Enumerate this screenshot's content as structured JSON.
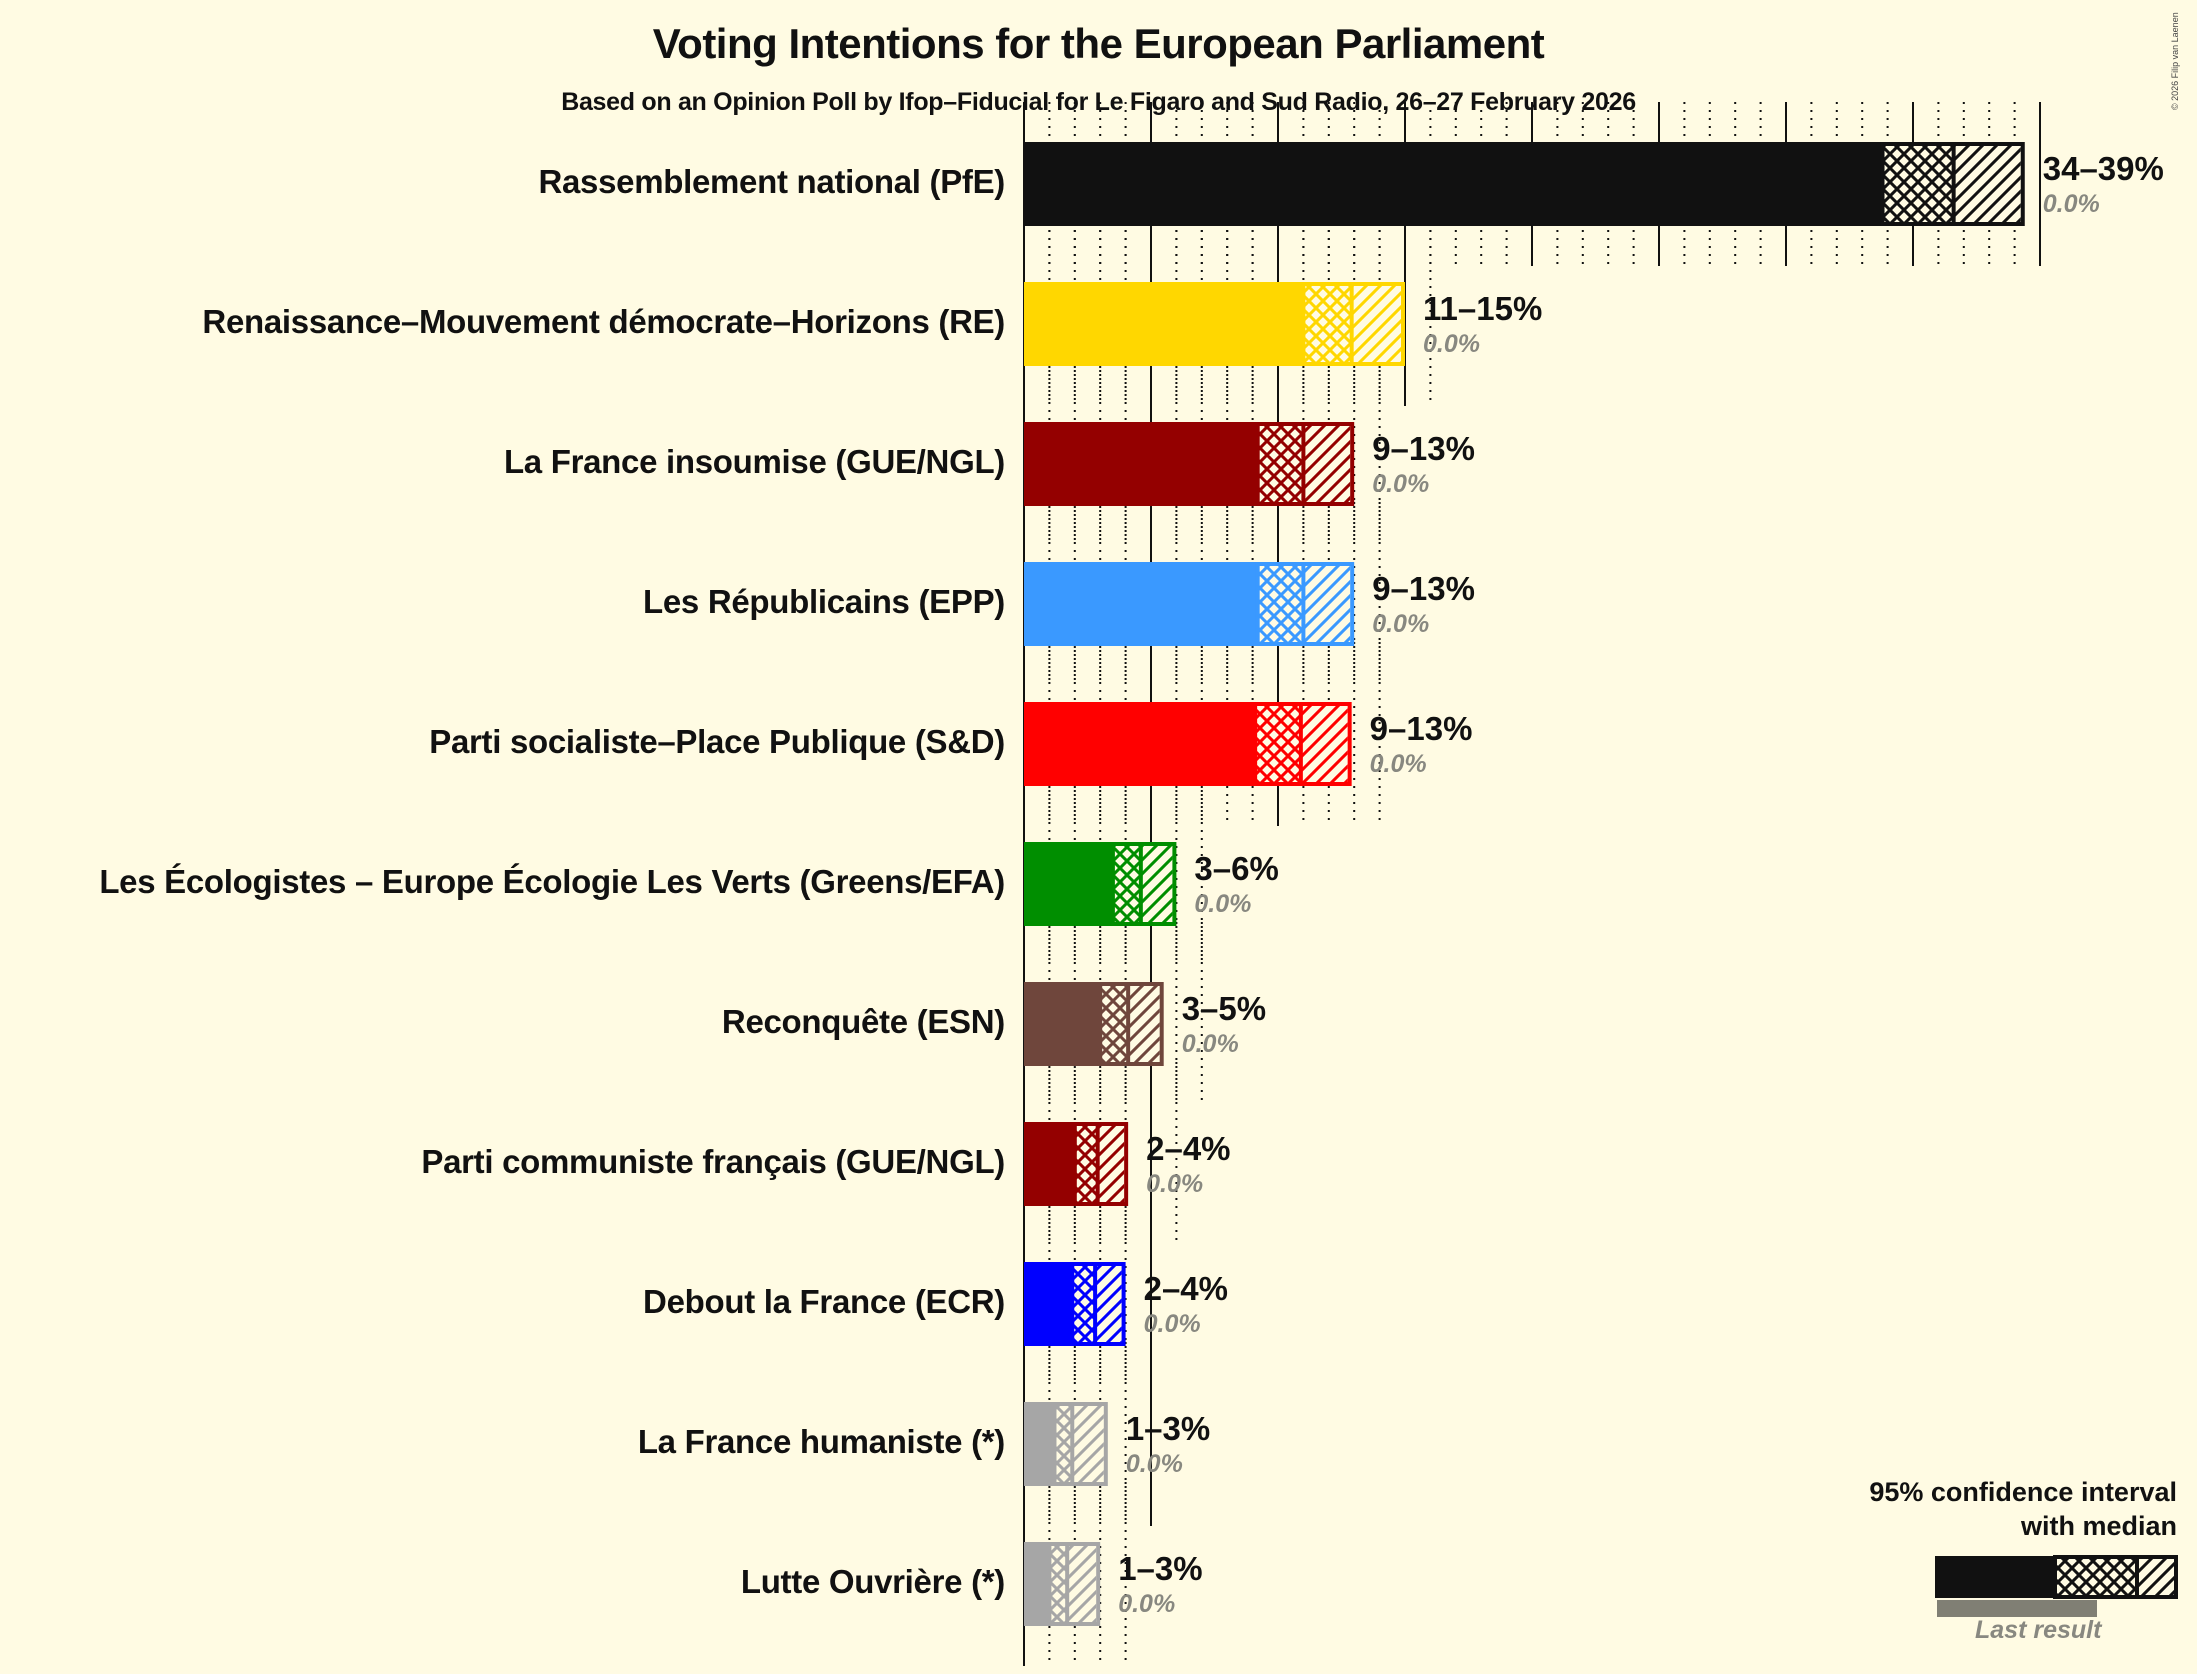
{
  "header": {
    "title": "Voting Intentions for the European Parliament",
    "subtitle": "Based on an Opinion Poll by Ifop–Fiducial for Le Figaro and Sud Radio, 26–27 February 2026",
    "copyright": "© 2026 Filip van Laenen"
  },
  "legend": {
    "title_line1": "95% confidence interval",
    "title_line2": "with median",
    "last_result": "Last result"
  },
  "chart_data": {
    "type": "bar",
    "orientation": "horizontal",
    "title": "Voting Intentions for the European Parliament",
    "subtitle": "Based on an Opinion Poll by Ifop–Fiducial for Le Figaro and Sud Radio, 26–27 February 2026",
    "xlabel": "",
    "ylabel": "",
    "xlim": [
      0,
      40
    ],
    "grid": {
      "major_every_pct": 5,
      "minor_every_pct": 1
    },
    "legend": {
      "position": "bottom-right",
      "entries": [
        "95% confidence interval with median",
        "Last result"
      ]
    },
    "categories": [
      "Rassemblement national (PfE)",
      "Renaissance–Mouvement démocrate–Horizons (RE)",
      "La France insoumise (GUE/NGL)",
      "Les Républicains (EPP)",
      "Parti socialiste–Place Publique (S&D)",
      "Les Écologistes – Europe Écologie Les Verts (Greens/EFA)",
      "Reconquête (ESN)",
      "Parti communiste français (GUE/NGL)",
      "Debout la France (ECR)",
      "La France humaniste (*)",
      "Lutte Ouvrière (*)"
    ],
    "series": [
      {
        "name": "CI low (%)",
        "values": [
          33.8,
          11.0,
          9.2,
          9.2,
          9.1,
          3.5,
          3.0,
          2.0,
          1.9,
          1.2,
          1.0
        ]
      },
      {
        "name": "Median (%)",
        "values": [
          36.6,
          12.9,
          11.0,
          11.0,
          10.9,
          4.6,
          4.1,
          2.9,
          2.8,
          1.9,
          1.7
        ]
      },
      {
        "name": "CI high (%)",
        "values": [
          39.4,
          15.0,
          13.0,
          13.0,
          12.9,
          6.0,
          5.5,
          4.1,
          4.0,
          3.3,
          3.0
        ]
      },
      {
        "name": "Last result (%)",
        "values": [
          0.0,
          0.0,
          0.0,
          0.0,
          0.0,
          0.0,
          0.0,
          0.0,
          0.0,
          0.0,
          0.0
        ]
      }
    ],
    "parties": [
      {
        "label": "Rassemblement national (PfE)",
        "range": "34–39%",
        "last": "0.0%",
        "color": "#111111",
        "low": 33.8,
        "median": 36.6,
        "high": 39.4
      },
      {
        "label": "Renaissance–Mouvement démocrate–Horizons (RE)",
        "range": "11–15%",
        "last": "0.0%",
        "color": "#FFD700",
        "low": 11.0,
        "median": 12.9,
        "high": 15.0
      },
      {
        "label": "La France insoumise (GUE/NGL)",
        "range": "9–13%",
        "last": "0.0%",
        "color": "#940000",
        "low": 9.2,
        "median": 11.0,
        "high": 13.0
      },
      {
        "label": "Les Républicains (EPP)",
        "range": "9–13%",
        "last": "0.0%",
        "color": "#3A99FF",
        "low": 9.2,
        "median": 11.0,
        "high": 13.0
      },
      {
        "label": "Parti socialiste–Place Publique (S&D)",
        "range": "9–13%",
        "last": "0.0%",
        "color": "#FF0000",
        "low": 9.1,
        "median": 10.9,
        "high": 12.9
      },
      {
        "label": "Les Écologistes – Europe Écologie Les Verts (Greens/EFA)",
        "range": "3–6%",
        "last": "0.0%",
        "color": "#008E00",
        "low": 3.5,
        "median": 4.6,
        "high": 6.0
      },
      {
        "label": "Reconquête (ESN)",
        "range": "3–5%",
        "last": "0.0%",
        "color": "#6F463C",
        "low": 3.0,
        "median": 4.1,
        "high": 5.5
      },
      {
        "label": "Parti communiste français (GUE/NGL)",
        "range": "2–4%",
        "last": "0.0%",
        "color": "#940000",
        "low": 2.0,
        "median": 2.9,
        "high": 4.1
      },
      {
        "label": "Debout la France (ECR)",
        "range": "2–4%",
        "last": "0.0%",
        "color": "#0000FF",
        "low": 1.9,
        "median": 2.8,
        "high": 4.0
      },
      {
        "label": "La France humaniste (*)",
        "range": "1–3%",
        "last": "0.0%",
        "color": "#A6A6A6",
        "low": 1.2,
        "median": 1.9,
        "high": 3.3
      },
      {
        "label": "Lutte Ouvrière (*)",
        "range": "1–3%",
        "last": "0.0%",
        "color": "#A6A6A6",
        "low": 1.0,
        "median": 1.7,
        "high": 3.0
      }
    ]
  }
}
